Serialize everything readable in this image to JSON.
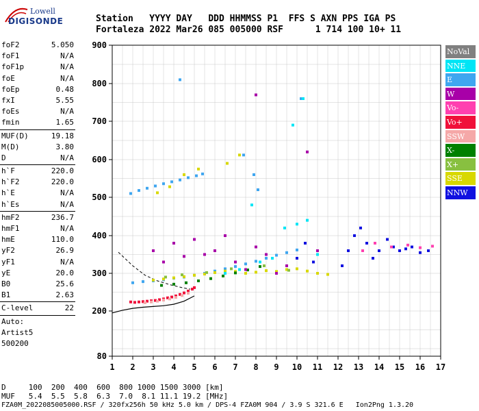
{
  "logo": {
    "line1": "Lowell",
    "line2": "DIGISONDE"
  },
  "header": {
    "line1": "Station   YYYY DAY   DDD HHMMSS P1  FFS S AXN PPS IGA PS",
    "line2": "Fortaleza 2022 Mar26 085 005000 RSF      1 714 100 10+ 11"
  },
  "params": {
    "group1": [
      {
        "k": "foF2",
        "v": "5.050"
      },
      {
        "k": "foF1",
        "v": "N/A"
      },
      {
        "k": "foF1p",
        "v": "N/A"
      },
      {
        "k": "foE",
        "v": "N/A"
      },
      {
        "k": "foEp",
        "v": "0.48"
      },
      {
        "k": "fxI",
        "v": "5.55"
      },
      {
        "k": "foEs",
        "v": "N/A"
      },
      {
        "k": "fmin",
        "v": "1.65"
      }
    ],
    "group2": [
      {
        "k": "MUF(D)",
        "v": "19.18"
      },
      {
        "k": "M(D)",
        "v": "3.80"
      },
      {
        "k": "D",
        "v": "N/A"
      }
    ],
    "group3": [
      {
        "k": "h`F",
        "v": "220.0"
      },
      {
        "k": "h`F2",
        "v": "220.0"
      },
      {
        "k": "h`E",
        "v": "N/A"
      },
      {
        "k": "h`Es",
        "v": "N/A"
      }
    ],
    "group4": [
      {
        "k": "hmF2",
        "v": "236.7"
      },
      {
        "k": "hmF1",
        "v": "N/A"
      },
      {
        "k": "hmE",
        "v": "110.0"
      },
      {
        "k": "yF2",
        "v": "26.9"
      },
      {
        "k": "yF1",
        "v": "N/A"
      },
      {
        "k": "yE",
        "v": "20.0"
      },
      {
        "k": "B0",
        "v": "25.6"
      },
      {
        "k": "B1",
        "v": "2.63"
      }
    ],
    "group5": [
      {
        "k": "C-level",
        "v": "22"
      }
    ],
    "auto": [
      "Auto:",
      "Artist5",
      "500200"
    ]
  },
  "legend": [
    {
      "label": "NoVal",
      "color": "#808080"
    },
    {
      "label": "NNE",
      "color": "#00e5f5"
    },
    {
      "label": "E",
      "color": "#3fa6f0"
    },
    {
      "label": "W",
      "color": "#a800a8"
    },
    {
      "label": "Vo-",
      "color": "#ff40b0"
    },
    {
      "label": "Vo+",
      "color": "#f0103a"
    },
    {
      "label": "SSW",
      "color": "#f5a8a8"
    },
    {
      "label": "X-",
      "color": "#008000"
    },
    {
      "label": "X+",
      "color": "#88c040"
    },
    {
      "label": "SSE",
      "color": "#d8d800"
    },
    {
      "label": "NNW",
      "color": "#1010e0"
    }
  ],
  "bottom": {
    "line1": "D     100  200  400  600  800 1000 1500 3000 [km]",
    "line2": "MUF   5.4  5.5  5.8  6.3  7.0  8.1 11.1 19.2 [MHz]"
  },
  "footer": "FZA0M_2022085005000.RSF / 320fx256h 50 kHz 5.0 km / DPS-4 FZA0M 904 / 3.9 S 321.6 E   Ion2Png 1.3.20",
  "chart_data": {
    "type": "scatter",
    "title": "",
    "xlabel": "",
    "ylabel": "",
    "xlim": [
      1,
      17
    ],
    "ylim": [
      80,
      900
    ],
    "x_ticks": [
      1,
      2,
      3,
      4,
      5,
      6,
      7,
      8,
      9,
      10,
      11,
      12,
      13,
      14,
      15,
      16,
      17
    ],
    "y_ticks": [
      80,
      200,
      300,
      400,
      500,
      600,
      700,
      800,
      900
    ],
    "grid": true,
    "legend_position": "right",
    "profile_curve": {
      "x": [
        1.0,
        1.5,
        2.0,
        2.5,
        3.0,
        3.5,
        4.0,
        4.5,
        5.0
      ],
      "y": [
        195,
        202,
        207,
        210,
        212,
        214,
        218,
        226,
        240
      ]
    },
    "dashed_trace": {
      "x": [
        1.3,
        2.0,
        2.6,
        3.2,
        3.8,
        4.4,
        4.8
      ],
      "y": [
        356,
        320,
        295,
        280,
        270,
        262,
        258
      ]
    },
    "series": [
      {
        "name": "Vo+",
        "color": "#f0103a",
        "x": [
          1.9,
          2.1,
          2.3,
          2.5,
          2.7,
          2.9,
          3.1,
          3.3,
          3.5,
          3.7,
          3.9,
          4.1,
          4.3,
          4.5,
          4.7,
          4.9,
          5.0
        ],
        "y": [
          224,
          223,
          224,
          225,
          226,
          227,
          228,
          230,
          232,
          235,
          237,
          240,
          244,
          248,
          253,
          258,
          262
        ]
      },
      {
        "name": "SSW",
        "color": "#f5a8a8",
        "x": [
          2.6,
          2.9,
          3.2,
          3.5,
          3.8,
          4.1,
          4.4,
          4.7
        ],
        "y": [
          222,
          224,
          226,
          229,
          232,
          236,
          241,
          247
        ]
      },
      {
        "name": "E",
        "color": "#3fa6f0",
        "x": [
          2.0,
          2.5,
          3.0,
          3.5,
          4.0,
          4.5,
          5.0,
          5.5,
          6.0,
          6.5,
          7.0,
          7.5,
          8.0,
          8.5,
          9.0,
          9.5,
          10.0,
          1.9,
          2.3,
          2.7,
          3.1,
          3.5,
          3.9,
          4.3,
          4.7,
          5.1,
          5.4,
          7.4,
          7.9,
          8.1,
          10.2,
          4.3
        ],
        "y": [
          275,
          278,
          280,
          283,
          287,
          290,
          295,
          300,
          306,
          312,
          318,
          325,
          332,
          340,
          348,
          355,
          362,
          510,
          518,
          524,
          530,
          536,
          541,
          546,
          552,
          557,
          562,
          612,
          560,
          520,
          760,
          810
        ]
      },
      {
        "name": "SSE",
        "color": "#d8d800",
        "x": [
          3.0,
          3.5,
          4.0,
          4.5,
          5.0,
          5.5,
          6.0,
          6.5,
          7.0,
          7.5,
          8.0,
          8.5,
          9.0,
          9.5,
          10.0,
          10.5,
          11.0,
          11.5,
          3.2,
          3.8,
          4.5,
          5.2,
          6.6,
          7.2
        ],
        "y": [
          282,
          285,
          288,
          291,
          295,
          298,
          302,
          306,
          305,
          300,
          303,
          307,
          305,
          310,
          312,
          306,
          300,
          297,
          512,
          528,
          560,
          575,
          590,
          612
        ]
      },
      {
        "name": "X-",
        "color": "#008000",
        "x": [
          3.4,
          4.0,
          4.6,
          5.2,
          5.8,
          6.4,
          7.0,
          7.6,
          8.2
        ],
        "y": [
          268,
          271,
          275,
          280,
          286,
          293,
          301,
          309,
          318
        ]
      },
      {
        "name": "W",
        "color": "#a800a8",
        "x": [
          3.0,
          3.5,
          4.0,
          4.5,
          5.0,
          5.5,
          6.0,
          6.5,
          7.0,
          7.5,
          8.0,
          8.5,
          9.0,
          9.5,
          10.0,
          11.0,
          8.0,
          10.5
        ],
        "y": [
          360,
          330,
          380,
          345,
          390,
          350,
          360,
          400,
          330,
          310,
          370,
          350,
          300,
          320,
          340,
          360,
          770,
          620
        ]
      },
      {
        "name": "NNE",
        "color": "#00e5f5",
        "x": [
          6.5,
          7.2,
          7.8,
          8.2,
          8.8,
          9.4,
          10.0,
          10.5,
          11.0,
          9.8,
          10.3
        ],
        "y": [
          300,
          310,
          480,
          330,
          340,
          420,
          430,
          440,
          350,
          690,
          760
        ]
      },
      {
        "name": "NNW",
        "color": "#1010e0",
        "x": [
          10.0,
          10.4,
          10.8,
          12.2,
          12.5,
          12.8,
          13.1,
          13.4,
          13.7,
          14.0,
          14.4,
          14.7,
          15.0,
          15.3,
          15.6,
          16.0,
          16.4
        ],
        "y": [
          340,
          380,
          330,
          320,
          360,
          400,
          420,
          380,
          340,
          360,
          390,
          370,
          360,
          365,
          370,
          355,
          360
        ]
      },
      {
        "name": "Vo-",
        "color": "#ff40b0",
        "x": [
          13.2,
          13.8,
          14.6,
          15.4,
          16.0,
          16.6
        ],
        "y": [
          360,
          380,
          370,
          375,
          368,
          372
        ]
      },
      {
        "name": "X+",
        "color": "#88c040",
        "x": [
          3.6,
          4.4,
          5.6,
          6.8,
          8.4,
          9.6
        ],
        "y": [
          290,
          296,
          302,
          312,
          320,
          308
        ]
      }
    ]
  }
}
